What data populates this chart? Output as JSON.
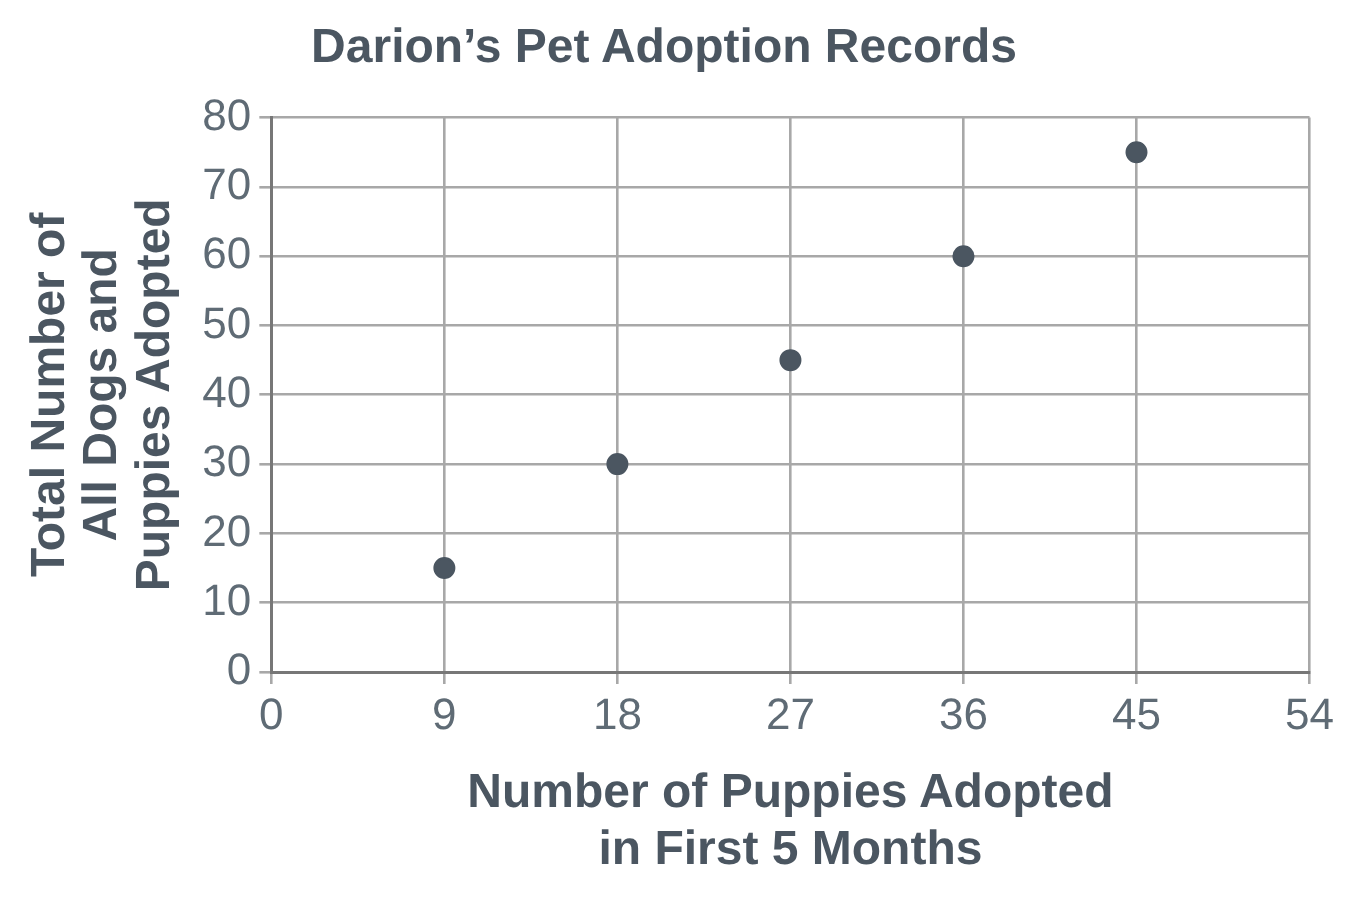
{
  "chart_data": {
    "type": "scatter",
    "title": "Darion’s Pet Adoption Records",
    "xlabel": "Number of Puppies Adopted\nin First 5 Months",
    "ylabel": "Total Number of\nAll Dogs and\nPuppies Adopted",
    "x": [
      9,
      18,
      27,
      36,
      45
    ],
    "series": [
      {
        "color": "#4b5661",
        "values": [
          15,
          30,
          45,
          60,
          75
        ]
      }
    ],
    "xlim": [
      0,
      54
    ],
    "xticks": [
      0,
      9,
      18,
      27,
      36,
      45,
      54
    ],
    "ylim": [
      0,
      80
    ],
    "yticks": [
      0,
      10,
      20,
      30,
      40,
      50,
      60,
      70,
      80
    ],
    "grid": true,
    "legend": false,
    "marker": "circle"
  }
}
